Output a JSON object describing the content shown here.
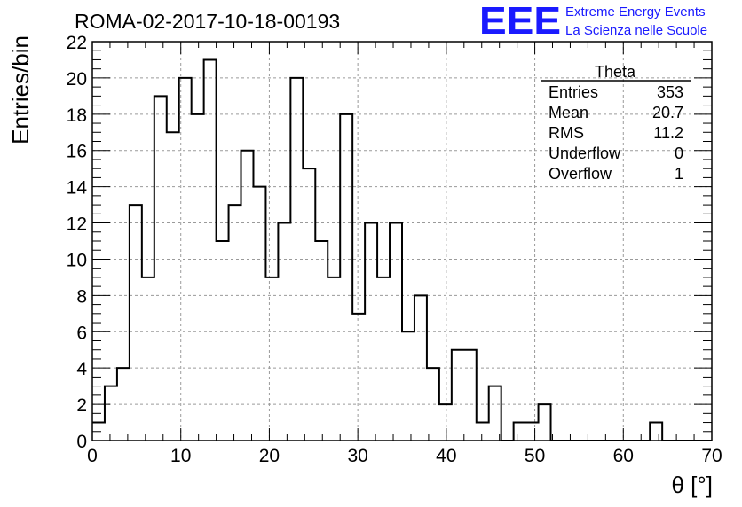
{
  "chart_data": {
    "type": "histogram",
    "title": "ROMA-02-2017-10-18-00193",
    "xlabel": "θ [°]",
    "ylabel": "Entries/bin",
    "xlim": [
      0,
      70
    ],
    "ylim": [
      0,
      22
    ],
    "grid": true,
    "bin_width": 1.4,
    "x_ticks": [
      "0",
      "10",
      "20",
      "30",
      "40",
      "50",
      "60",
      "70"
    ],
    "y_ticks": [
      "0",
      "2",
      "4",
      "6",
      "8",
      "10",
      "12",
      "14",
      "16",
      "18",
      "20",
      "22"
    ],
    "values": [
      1,
      3,
      4,
      13,
      9,
      19,
      17,
      20,
      18,
      21,
      11,
      13,
      16,
      14,
      9,
      12,
      20,
      15,
      11,
      9,
      18,
      7,
      12,
      9,
      12,
      6,
      8,
      4,
      2,
      5,
      5,
      1,
      3,
      0,
      1,
      1,
      2,
      0,
      0,
      0,
      0,
      0,
      0,
      0,
      0,
      1,
      0,
      0,
      0,
      0
    ],
    "stats_box": {
      "title": "Theta",
      "rows": [
        {
          "label": "Entries",
          "value": "353"
        },
        {
          "label": "Mean",
          "value": "20.7"
        },
        {
          "label": "RMS",
          "value": "11.2"
        },
        {
          "label": "Underflow",
          "value": "0"
        },
        {
          "label": "Overflow",
          "value": "1"
        }
      ]
    }
  },
  "logo": {
    "text": "EEE",
    "line1": "Extreme Energy Events",
    "line2": "La Scienza nelle Scuole",
    "color": "#1a1aff"
  },
  "colors": {
    "histogram": "#000000",
    "grid": "#9a9a9a"
  }
}
